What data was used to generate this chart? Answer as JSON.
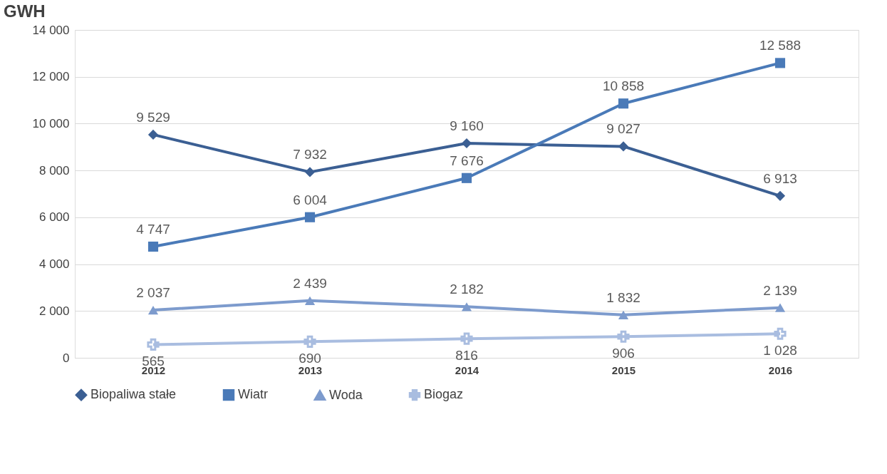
{
  "chart_data": {
    "type": "line",
    "ylabel": "GWH",
    "categories": [
      "2012",
      "2013",
      "2014",
      "2015",
      "2016"
    ],
    "series": [
      {
        "name": "Biopaliwa stałe",
        "color": "#3b5f93",
        "marker": "diamond",
        "values": [
          9529,
          7932,
          9160,
          9027,
          6913
        ]
      },
      {
        "name": "Wiatr",
        "color": "#4a7ab8",
        "marker": "square",
        "values": [
          4747,
          6004,
          7676,
          10858,
          12588
        ]
      },
      {
        "name": "Woda",
        "color": "#7d9bcd",
        "marker": "triangle",
        "values": [
          2037,
          2439,
          2182,
          1832,
          2139
        ]
      },
      {
        "name": "Biogaz",
        "color": "#a9bde0",
        "marker": "cross",
        "values": [
          565,
          690,
          816,
          906,
          1028
        ]
      }
    ],
    "ylim": [
      0,
      14000
    ],
    "yticks": [
      {
        "value": 0,
        "label": "0"
      },
      {
        "value": 2000,
        "label": "2 000"
      },
      {
        "value": 4000,
        "label": "4 000"
      },
      {
        "value": 6000,
        "label": "6 000"
      },
      {
        "value": 8000,
        "label": "8 000"
      },
      {
        "value": 10000,
        "label": "10 000"
      },
      {
        "value": 12000,
        "label": "12 000"
      },
      {
        "value": 14000,
        "label": "14 000"
      }
    ],
    "grid": "y",
    "legend": "bottom",
    "data_labels": true,
    "line_style": "solid"
  }
}
